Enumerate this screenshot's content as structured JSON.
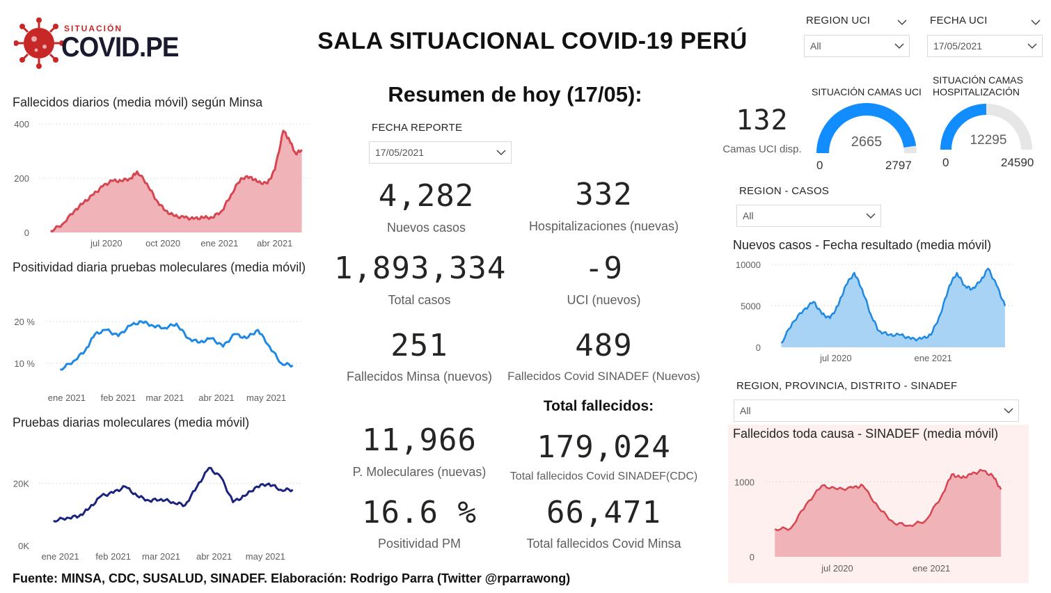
{
  "header": {
    "title": "SALA SITUACIONAL COVID-19 PERÚ",
    "logo_top": "SITUACIÓN",
    "logo_main": "COVID.PE"
  },
  "filters": {
    "region_uci": {
      "label": "REGION UCI",
      "value": "All"
    },
    "fecha_uci": {
      "label": "FECHA UCI",
      "value": "17/05/2021"
    },
    "fecha_reporte": {
      "label": "FECHA REPORTE",
      "value": "17/05/2021"
    },
    "region_casos": {
      "label": "REGION - CASOS",
      "value": "All"
    },
    "region_sinadef": {
      "label": "REGION, PROVINCIA, DISTRITO - SINADEF",
      "value": "All"
    }
  },
  "summary": {
    "title": "Resumen de hoy (17/05):",
    "kpis": [
      {
        "value": "4,282",
        "label": "Nuevos casos"
      },
      {
        "value": "332",
        "label": "Hospitalizaciones (nuevas)"
      },
      {
        "value": "1,893,334",
        "label": "Total casos"
      },
      {
        "value": "-9",
        "label": "UCI (nuevos)"
      },
      {
        "value": "251",
        "label": "Fallecidos Minsa (nuevos)"
      },
      {
        "value": "489",
        "label": "Fallecidos Covid SINADEF (Nuevos)"
      },
      {
        "value": "11,966",
        "label": "P. Moleculares (nuevas)"
      },
      {
        "value": "179,024",
        "label": "Total fallecidos Covid SINADEF(CDC)"
      },
      {
        "value": "16.6 %",
        "label": "Positividad PM"
      },
      {
        "value": "66,471",
        "label": "Total fallecidos Covid Minsa"
      }
    ],
    "total_fallecidos_title": "Total fallecidos:"
  },
  "uci": {
    "value": "132",
    "label": "Camas UCI disp.",
    "gauge_uci": {
      "title": "SITUACIÓN CAMAS UCI",
      "value": "2665",
      "min": "0",
      "max": "2797",
      "fraction": 0.953
    },
    "gauge_hosp": {
      "title": "SITUACIÓN CAMAS HOSPITALIZACIÓN",
      "value": "12295",
      "min": "0",
      "max": "24590",
      "fraction": 0.5
    }
  },
  "footer": "Fuente: MINSA, CDC, SUSALUD, SINADEF. Elaboración: Rodrigo Parra (Twitter @rparrawong)",
  "colors": {
    "red_line": "#d64550",
    "red_fill": "#f0b3b8",
    "blue_line": "#1e88e5",
    "navy_line": "#1a237e",
    "cases_line": "#1e88e5",
    "cases_fill": "#a9d3f5",
    "gauge_fill": "#118dff",
    "gauge_track": "#e6e6e6",
    "sinadef_bg": "#fdf0ee"
  },
  "chart_data": [
    {
      "id": "fallecidos",
      "type": "area",
      "title": "Fallecidos diarios (media móvil) según Minsa",
      "x": [
        "2020-04-01",
        "2020-04-20",
        "2020-05-10",
        "2020-05-25",
        "2020-06-10",
        "2020-06-25",
        "2020-07-10",
        "2020-07-25",
        "2020-08-10",
        "2020-08-20",
        "2020-09-05",
        "2020-09-20",
        "2020-10-05",
        "2020-10-20",
        "2020-11-05",
        "2020-11-20",
        "2020-12-05",
        "2020-12-20",
        "2021-01-05",
        "2021-01-20",
        "2021-02-05",
        "2021-02-20",
        "2021-03-05",
        "2021-03-20",
        "2021-04-01",
        "2021-04-15",
        "2021-04-25",
        "2021-05-05",
        "2021-05-15"
      ],
      "values": [
        5,
        30,
        80,
        110,
        140,
        170,
        190,
        190,
        200,
        225,
        180,
        120,
        80,
        60,
        55,
        50,
        55,
        55,
        80,
        140,
        200,
        205,
        185,
        180,
        230,
        375,
        340,
        290,
        305
      ],
      "xticks": [
        "jul 2020",
        "oct 2020",
        "ene 2021",
        "abr 2021"
      ],
      "ylim": [
        0,
        400
      ],
      "yticks": [
        "0",
        "200",
        "400"
      ]
    },
    {
      "id": "positividad",
      "type": "line",
      "title": "Positividad diaria pruebas moleculares (media móvil)",
      "x": [
        "2020-12-28",
        "2021-01-05",
        "2021-01-12",
        "2021-01-18",
        "2021-01-25",
        "2021-02-01",
        "2021-02-08",
        "2021-02-15",
        "2021-02-22",
        "2021-03-01",
        "2021-03-08",
        "2021-03-15",
        "2021-03-22",
        "2021-03-29",
        "2021-04-05",
        "2021-04-12",
        "2021-04-19",
        "2021-04-26",
        "2021-05-03",
        "2021-05-10",
        "2021-05-17"
      ],
      "values": [
        8.5,
        10.5,
        13,
        17,
        18,
        16.5,
        19,
        20,
        19,
        18.5,
        19.5,
        16,
        15,
        16,
        14,
        17,
        16,
        18,
        14,
        10,
        9.5
      ],
      "xticks": [
        "ene 2021",
        "feb 2021",
        "mar 2021",
        "abr 2021",
        "may 2021"
      ],
      "ylim": [
        7,
        22
      ],
      "yticks": [
        "10 %",
        "20 %"
      ]
    },
    {
      "id": "pruebas",
      "type": "line",
      "title": "Pruebas diarias moleculares (media móvil)",
      "x": [
        "2020-12-28",
        "2021-01-05",
        "2021-01-12",
        "2021-01-18",
        "2021-01-25",
        "2021-02-01",
        "2021-02-08",
        "2021-02-15",
        "2021-02-22",
        "2021-03-01",
        "2021-03-08",
        "2021-03-15",
        "2021-03-22",
        "2021-03-29",
        "2021-04-05",
        "2021-04-12",
        "2021-04-19",
        "2021-04-26",
        "2021-05-03",
        "2021-05-10",
        "2021-05-17"
      ],
      "values": [
        8000,
        9000,
        9500,
        12000,
        16000,
        17000,
        19000,
        16000,
        14500,
        15000,
        14000,
        13000,
        19000,
        25000,
        22000,
        14000,
        16000,
        19000,
        20000,
        18000,
        18000
      ],
      "xticks": [
        "ene 2021",
        "feb 2021",
        "mar 2021",
        "abr 2021",
        "may 2021"
      ],
      "ylim": [
        0,
        30000
      ],
      "yticks": [
        "0K",
        "20K"
      ]
    },
    {
      "id": "casos",
      "type": "area",
      "title": "Nuevos casos - Fecha resultado (media móvil)",
      "x": [
        "2020-03-20",
        "2020-04-10",
        "2020-05-01",
        "2020-05-20",
        "2020-06-05",
        "2020-06-20",
        "2020-07-05",
        "2020-07-20",
        "2020-08-05",
        "2020-08-20",
        "2020-09-05",
        "2020-09-20",
        "2020-10-10",
        "2020-11-01",
        "2020-11-20",
        "2020-12-10",
        "2020-12-28",
        "2021-01-15",
        "2021-02-01",
        "2021-02-15",
        "2021-03-01",
        "2021-03-15",
        "2021-04-01",
        "2021-04-15",
        "2021-05-01",
        "2021-05-17"
      ],
      "values": [
        500,
        3000,
        4500,
        5500,
        4000,
        3500,
        5000,
        7500,
        9000,
        7000,
        4000,
        2000,
        1500,
        1500,
        1000,
        1000,
        1500,
        4000,
        7500,
        9000,
        7500,
        7000,
        8000,
        9500,
        7500,
        5000
      ],
      "xticks": [
        "jul 2020",
        "ene 2021"
      ],
      "ylim": [
        0,
        10000
      ],
      "yticks": [
        "0",
        "5000",
        "10000"
      ]
    },
    {
      "id": "sinadef",
      "type": "area",
      "title": "Fallecidos toda causa - SINADEF (media móvil)",
      "x": [
        "2020-03-01",
        "2020-04-01",
        "2020-05-01",
        "2020-06-01",
        "2020-07-01",
        "2020-08-01",
        "2020-08-20",
        "2020-09-20",
        "2020-10-20",
        "2020-11-20",
        "2020-12-20",
        "2021-01-20",
        "2021-02-10",
        "2021-03-01",
        "2021-03-20",
        "2021-04-10",
        "2021-05-01",
        "2021-05-17"
      ],
      "values": [
        370,
        380,
        700,
        950,
        900,
        920,
        950,
        650,
        450,
        420,
        480,
        800,
        1100,
        1050,
        1100,
        1150,
        1080,
        900
      ],
      "xticks": [
        "jul 2020",
        "ene 2021"
      ],
      "ylim": [
        0,
        1300
      ],
      "yticks": [
        "0",
        "1000"
      ]
    }
  ]
}
